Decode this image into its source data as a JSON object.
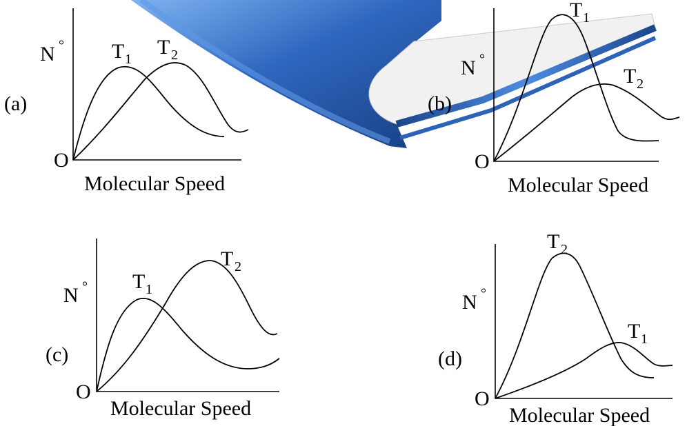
{
  "figure": {
    "xlabel": "Molecular Speed",
    "ylabel": "N",
    "ylabel_mark": "°",
    "origin": "O",
    "book_colors": {
      "dark": "#1f4e96",
      "mid": "#3a78d0",
      "light": "#7fb4f0",
      "pages": "#f1f1f1"
    }
  },
  "panels": [
    {
      "id": "a",
      "tag": "(a)",
      "curves": [
        {
          "base": "T",
          "sub": "1"
        },
        {
          "base": "T",
          "sub": "2"
        }
      ]
    },
    {
      "id": "b",
      "tag": "(b)",
      "curves": [
        {
          "base": "T",
          "sub": "1"
        },
        {
          "base": "T",
          "sub": "2"
        }
      ]
    },
    {
      "id": "c",
      "tag": "(c)",
      "curves": [
        {
          "base": "T",
          "sub": "1"
        },
        {
          "base": "T",
          "sub": "2"
        }
      ]
    },
    {
      "id": "d",
      "tag": "(d)",
      "curves": [
        {
          "base": "T",
          "sub": "2"
        },
        {
          "base": "T",
          "sub": "1"
        }
      ]
    }
  ]
}
